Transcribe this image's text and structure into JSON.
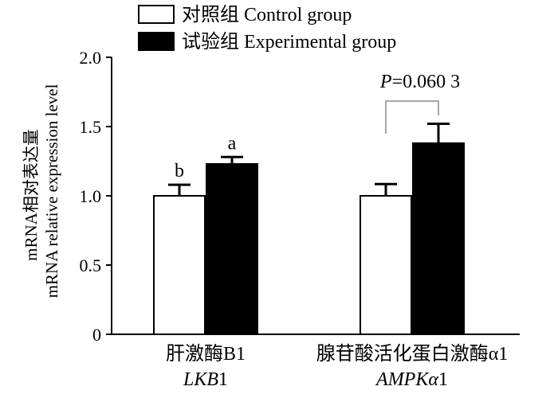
{
  "chart_data": {
    "type": "bar",
    "categories": [
      {
        "label_cn": "肝激酶B1",
        "label_en_italic": "LKB",
        "label_en_rest": "1"
      },
      {
        "label_cn": "腺苷酸活化蛋白激酶α1",
        "label_en_italic": "AMPKα",
        "label_en_rest": "1"
      }
    ],
    "series": [
      {
        "name": "对照组 Control group",
        "fill": "#ffffff",
        "values": [
          1.0,
          1.0
        ],
        "errors": [
          0.08,
          0.085
        ]
      },
      {
        "name": "试验组 Experimental group",
        "fill": "#000000",
        "values": [
          1.23,
          1.38
        ],
        "errors": [
          0.05,
          0.14
        ]
      }
    ],
    "bar_labels": [
      [
        "b",
        "a"
      ],
      [
        "",
        ""
      ]
    ],
    "comparison": {
      "category_index": 1,
      "p_italic": "P",
      "p_value": "=0.060 3"
    },
    "ylabel_cn": "mRNA相对表达量",
    "ylabel_en": "mRNA relative expression level",
    "ylim": [
      0,
      2.0
    ],
    "yticks": [
      "0",
      "0.5",
      "1.0",
      "1.5",
      "2.0"
    ],
    "legend_position": "top"
  }
}
